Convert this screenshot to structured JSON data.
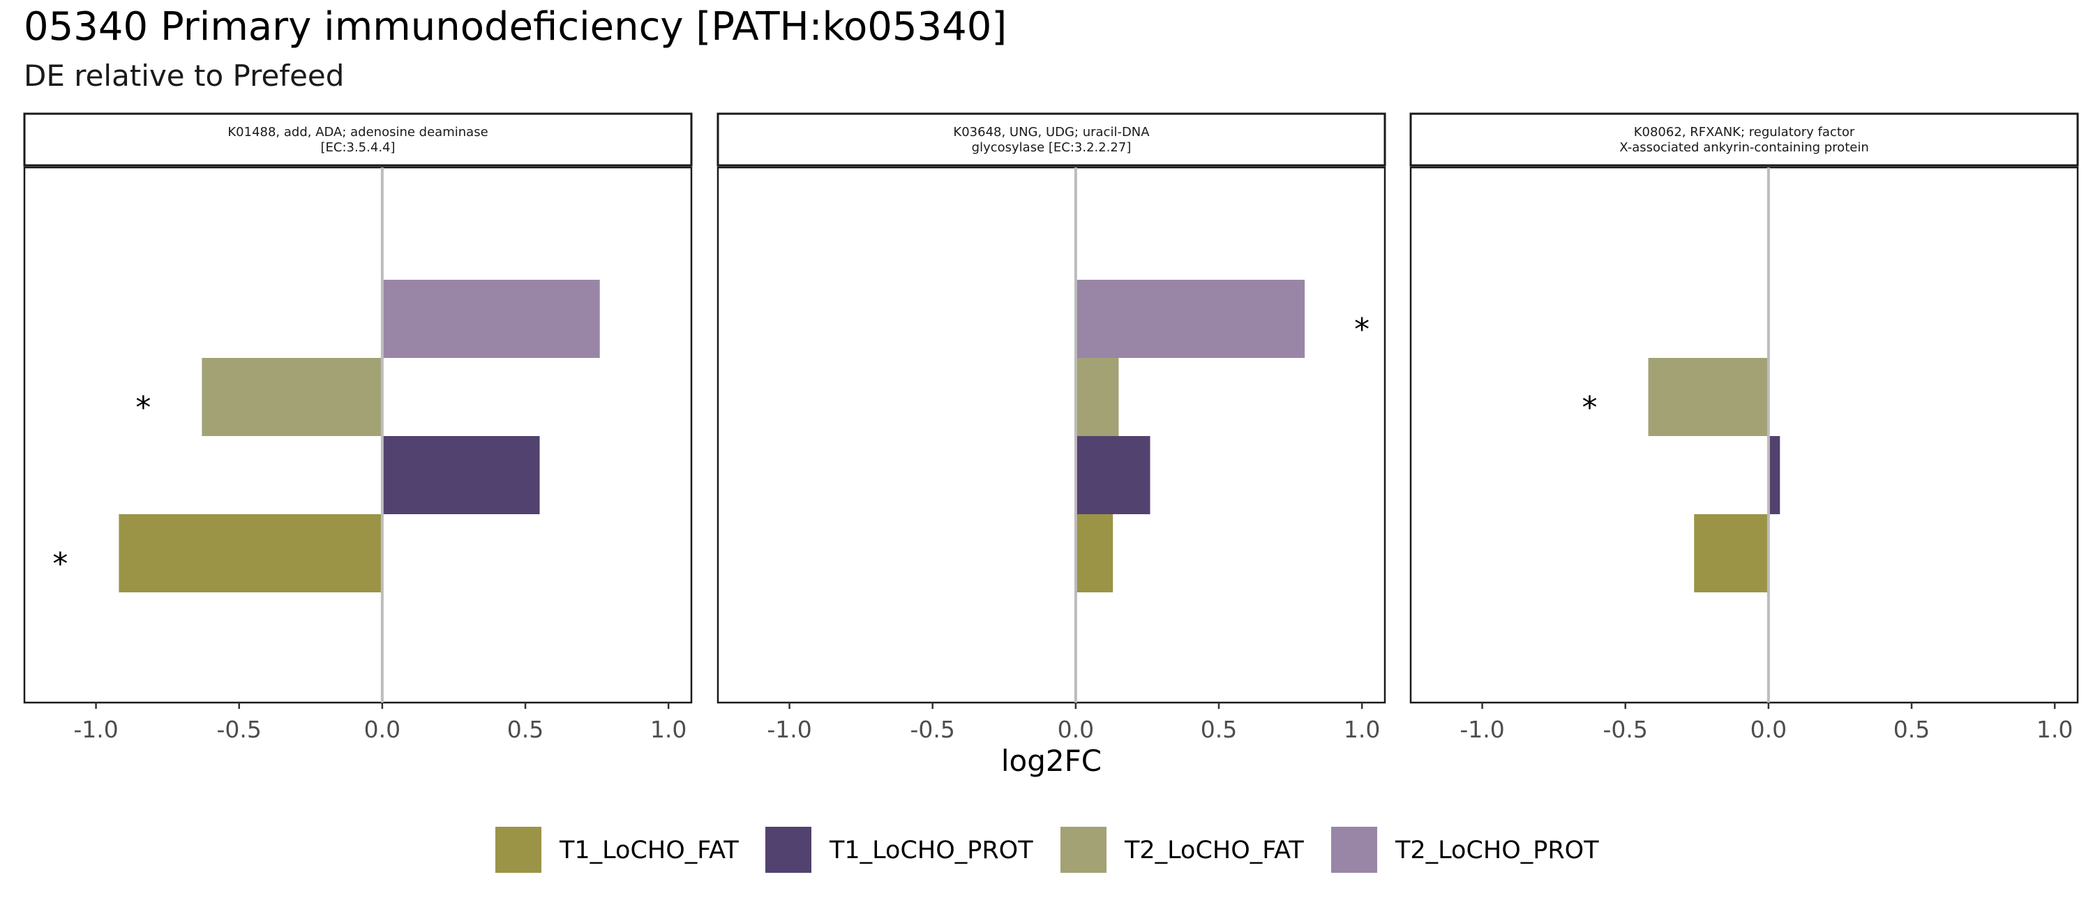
{
  "chart_data": {
    "type": "bar",
    "orientation": "horizontal",
    "title": "05340 Primary immunodeficiency [PATH:ko05340]",
    "subtitle": "DE relative to Prefeed",
    "xlabel": "log2FC",
    "xlim": [
      -1.25,
      1.08
    ],
    "x_ticks": [
      "-1.0",
      "-0.5",
      "0.0",
      "0.5",
      "1.0"
    ],
    "x_tick_values": [
      -1.0,
      -0.5,
      0.0,
      0.5,
      1.0
    ],
    "significance_marker": "*",
    "grid": false,
    "legend_position": "bottom",
    "legend": [
      {
        "name": "T1_LoCHO_FAT",
        "color": "#9b9447"
      },
      {
        "name": "T1_LoCHO_PROT",
        "color": "#52426f"
      },
      {
        "name": "T2_LoCHO_FAT",
        "color": "#a2a275"
      },
      {
        "name": "T2_LoCHO_PROT",
        "color": "#9986a6"
      }
    ],
    "categories": [
      "T1_LoCHO_FAT",
      "T1_LoCHO_PROT",
      "T2_LoCHO_FAT",
      "T2_LoCHO_PROT"
    ],
    "panels": [
      {
        "strip_lines": [
          "K01488, add, ADA; adenosine deaminase",
          "[EC:3.5.4.4]"
        ],
        "values": [
          -0.92,
          0.55,
          -0.63,
          0.76
        ],
        "significant": [
          true,
          false,
          true,
          false
        ]
      },
      {
        "strip_lines": [
          "K03648, UNG, UDG; uracil-DNA",
          "glycosylase [EC:3.2.2.27]"
        ],
        "values": [
          0.13,
          0.26,
          0.15,
          0.8
        ],
        "significant": [
          false,
          false,
          false,
          true
        ]
      },
      {
        "strip_lines": [
          "K08062, RFXANK; regulatory factor",
          "X-associated ankyrin-containing protein"
        ],
        "values": [
          -0.26,
          0.04,
          -0.42,
          0.0
        ],
        "significant": [
          false,
          false,
          true,
          false
        ]
      }
    ],
    "zero_line_color": "#bdbdbd"
  }
}
